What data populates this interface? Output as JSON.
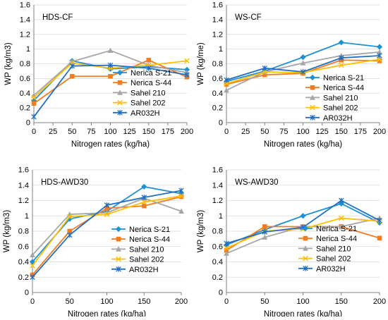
{
  "colors": {
    "Nerica S-21": "#1e90d6",
    "Nerica S-44": "#f47c20",
    "Sahel 210": "#a6a6a6",
    "Sahel 202": "#ffc000",
    "AR032H": "#1f6fc4"
  },
  "markers": {
    "Nerica S-21": "diamond",
    "Nerica S-44": "square",
    "Sahel 210": "triangle",
    "Sahel 202": "x",
    "AR032H": "star"
  },
  "chart_data": [
    {
      "type": "line",
      "title": "HDS-CF",
      "xlabel": "Nitrogen rates (kg/ha)",
      "ylabel": "WP (kg/m3)",
      "x": [
        0,
        50,
        100,
        150,
        200
      ],
      "xticks": [
        0,
        25,
        50,
        75,
        100,
        125,
        150,
        175,
        200
      ],
      "xlim": [
        0,
        200
      ],
      "ylim": [
        0,
        1.6
      ],
      "yticks": [
        0,
        0.2,
        0.4,
        0.6,
        0.8,
        1,
        1.2,
        1.4,
        1.6
      ],
      "legend": "right",
      "series": [
        {
          "name": "Nerica S-21",
          "values": [
            0.3,
            0.84,
            0.73,
            0.76,
            0.72
          ]
        },
        {
          "name": "Nerica S-44",
          "values": [
            0.26,
            0.63,
            0.63,
            0.85,
            0.62
          ]
        },
        {
          "name": "Sahel 210",
          "values": [
            0.37,
            0.83,
            0.98,
            0.78,
            0.68
          ]
        },
        {
          "name": "Sahel 202",
          "values": [
            0.34,
            0.81,
            0.74,
            0.78,
            0.84
          ]
        },
        {
          "name": "AR032H",
          "values": [
            0.08,
            0.77,
            0.78,
            0.74,
            0.65
          ]
        }
      ]
    },
    {
      "type": "line",
      "title": "WS-CF",
      "xlabel": "Nitrogen rates (kg/ha)",
      "ylabel": "WP (kg/me)",
      "x": [
        0,
        50,
        100,
        150,
        200
      ],
      "xticks": [
        0,
        25,
        50,
        75,
        100,
        125,
        150,
        175,
        200
      ],
      "xlim": [
        0,
        200
      ],
      "ylim": [
        0,
        1.6
      ],
      "yticks": [
        0,
        0.2,
        0.4,
        0.6,
        0.8,
        1,
        1.2,
        1.4,
        1.6
      ],
      "legend": "right",
      "series": [
        {
          "name": "Nerica S-21",
          "values": [
            0.56,
            0.7,
            0.89,
            1.09,
            1.03
          ]
        },
        {
          "name": "Nerica S-44",
          "values": [
            0.52,
            0.65,
            0.67,
            0.85,
            0.84
          ]
        },
        {
          "name": "Sahel 210",
          "values": [
            0.44,
            0.69,
            0.81,
            0.91,
            0.96
          ]
        },
        {
          "name": "Sahel 202",
          "values": [
            0.53,
            0.69,
            0.68,
            0.78,
            0.86
          ]
        },
        {
          "name": "AR032H",
          "values": [
            0.58,
            0.74,
            0.69,
            0.88,
            0.91
          ]
        }
      ]
    },
    {
      "type": "line",
      "title": "HDS-AWD30",
      "xlabel": "Nitrogen rates (kg/ha)",
      "ylabel": "WP (kg/m3)",
      "x": [
        0,
        50,
        100,
        150,
        200
      ],
      "xticks": [
        0,
        50,
        100,
        150,
        200
      ],
      "xlim": [
        0,
        200
      ],
      "ylim": [
        0,
        1.6
      ],
      "yticks": [
        0,
        0.2,
        0.4,
        0.6,
        0.8,
        1,
        1.2,
        1.4,
        1.6
      ],
      "legend": "right",
      "series": [
        {
          "name": "Nerica S-21",
          "values": [
            0.4,
            0.96,
            1.06,
            1.38,
            1.29
          ]
        },
        {
          "name": "Nerica S-44",
          "values": [
            0.23,
            0.8,
            1.1,
            1.13,
            1.25
          ]
        },
        {
          "name": "Sahel 210",
          "values": [
            0.49,
            1.02,
            1.04,
            1.23,
            1.06
          ]
        },
        {
          "name": "Sahel 202",
          "values": [
            0.35,
            0.99,
            1.02,
            1.18,
            1.26
          ]
        },
        {
          "name": "AR032H",
          "values": [
            0.2,
            0.75,
            1.14,
            1.24,
            1.33
          ]
        }
      ]
    },
    {
      "type": "line",
      "title": "WS-AWD30",
      "xlabel": "Nitrogen rates (kg/ha)",
      "ylabel": "WP (kg/m3)",
      "x": [
        0,
        50,
        100,
        150,
        200
      ],
      "xticks": [
        0,
        50,
        100,
        150,
        200
      ],
      "xlim": [
        0,
        200
      ],
      "ylim": [
        0,
        1.6
      ],
      "yticks": [
        0,
        0.2,
        0.4,
        0.6,
        0.8,
        1,
        1.2,
        1.4,
        1.6
      ],
      "legend": "right",
      "series": [
        {
          "name": "Nerica S-21",
          "values": [
            0.62,
            0.82,
            1.0,
            1.16,
            0.91
          ]
        },
        {
          "name": "Nerica S-44",
          "values": [
            0.55,
            0.86,
            0.86,
            0.86,
            0.71
          ]
        },
        {
          "name": "Sahel 210",
          "values": [
            0.51,
            0.72,
            0.86,
            0.86,
            0.97
          ]
        },
        {
          "name": "Sahel 202",
          "values": [
            0.58,
            0.8,
            0.83,
            0.97,
            0.93
          ]
        },
        {
          "name": "AR032H",
          "values": [
            0.64,
            0.79,
            0.85,
            1.2,
            0.94
          ]
        }
      ]
    }
  ]
}
